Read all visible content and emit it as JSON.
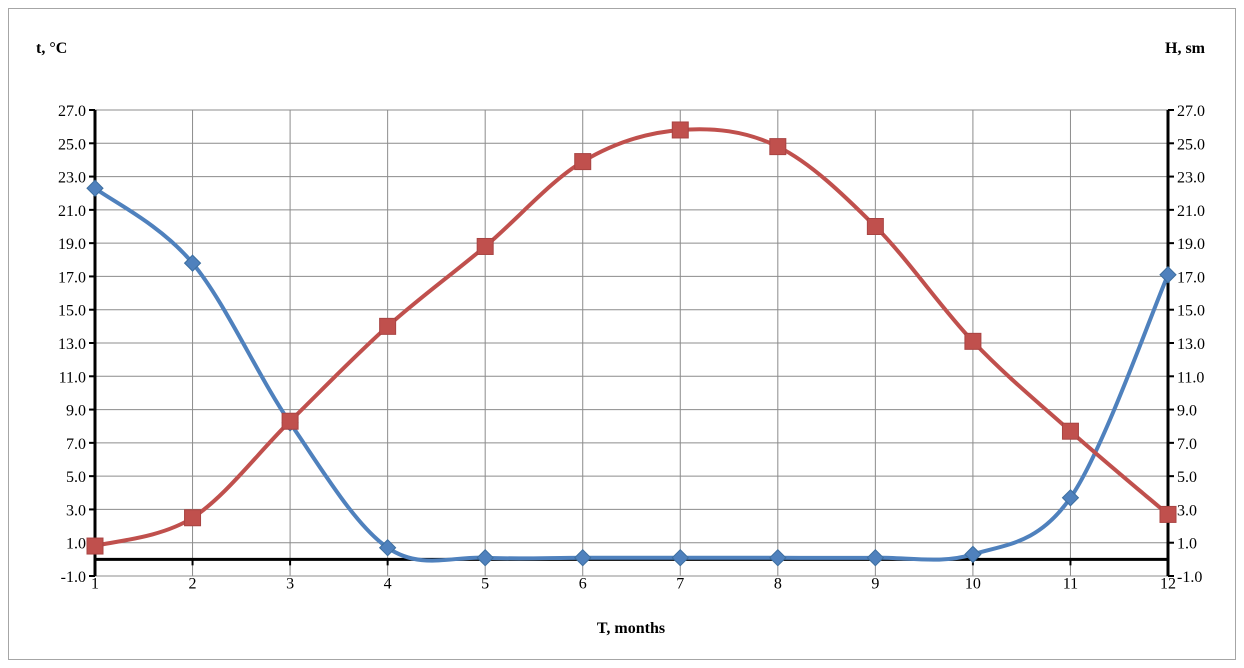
{
  "chart_data": {
    "type": "line",
    "left_axis_label": "t, °C",
    "right_axis_label": "H, sm",
    "xlabel": "T, months",
    "x": [
      1,
      2,
      3,
      4,
      5,
      6,
      7,
      8,
      9,
      10,
      11,
      12
    ],
    "x_tick_labels": [
      "1",
      "2",
      "3",
      "4",
      "5",
      "6",
      "7",
      "8",
      "9",
      "10",
      "11",
      "12"
    ],
    "y_tick_labels": [
      "27.0",
      "25.0",
      "23.0",
      "21.0",
      "19.0",
      "17.0",
      "15.0",
      "13.0",
      "11.0",
      "9.0",
      "7.0",
      "5.0",
      "3.0",
      "1.0",
      "-1.0"
    ],
    "ylim": [
      -1.0,
      27.0
    ],
    "grid": true,
    "smooth": true,
    "series": [
      {
        "color": "#4f81bd",
        "marker": "diamond",
        "axis": "right",
        "values": [
          22.3,
          17.8,
          8.2,
          0.7,
          0.1,
          0.1,
          0.1,
          0.1,
          0.1,
          0.3,
          3.7,
          17.1
        ]
      },
      {
        "color": "#c0504d",
        "marker": "square",
        "axis": "left",
        "values": [
          0.8,
          2.5,
          8.3,
          14.0,
          18.8,
          23.9,
          25.8,
          24.8,
          20.0,
          13.1,
          7.7,
          2.7
        ]
      }
    ]
  }
}
